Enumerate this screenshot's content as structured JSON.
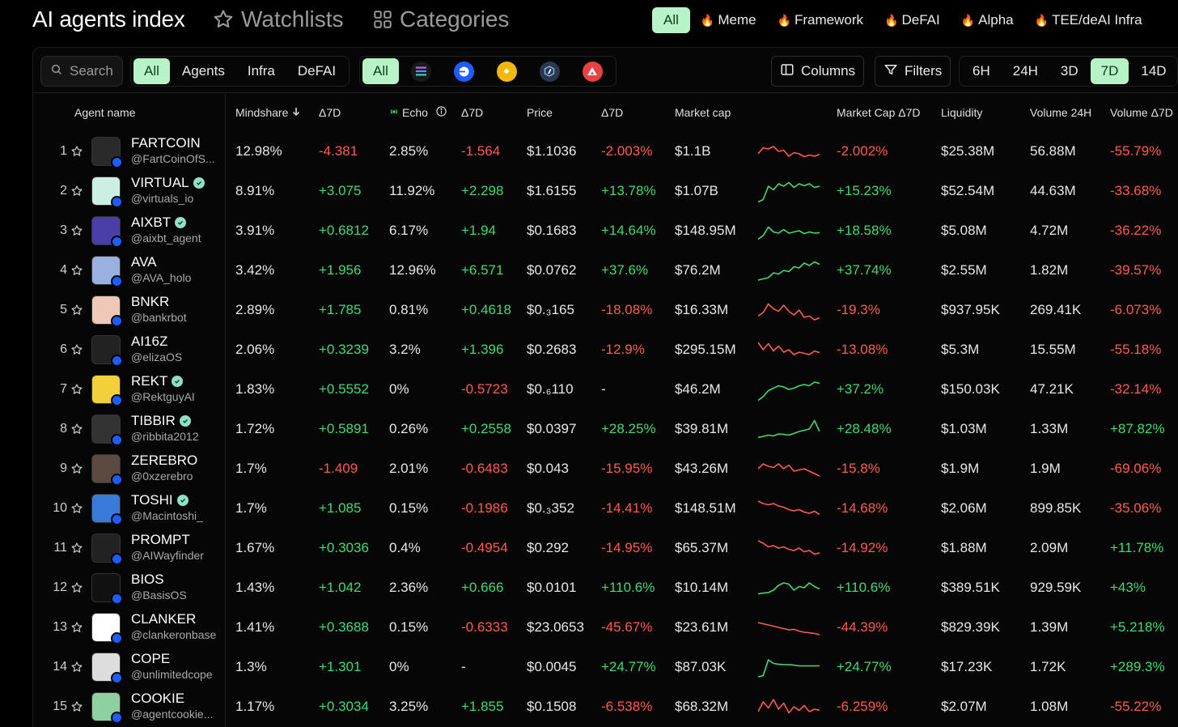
{
  "header": {
    "title": "AI agents index",
    "watchlists": "Watchlists",
    "categories": "Categories",
    "category_filters": [
      {
        "label": "All",
        "active": true,
        "hot": false
      },
      {
        "label": "Meme",
        "active": false,
        "hot": true
      },
      {
        "label": "Framework",
        "active": false,
        "hot": true
      },
      {
        "label": "DeFAI",
        "active": false,
        "hot": true
      },
      {
        "label": "Alpha",
        "active": false,
        "hot": true
      },
      {
        "label": "TEE/deAI Infra",
        "active": false,
        "hot": true
      }
    ]
  },
  "toolbar": {
    "search_placeholder": "Search",
    "type_tabs": [
      "All",
      "Agents",
      "Infra",
      "DeFAI"
    ],
    "chain_all": "All",
    "chains": [
      "solana-icon",
      "base-icon",
      "bnb-icon",
      "arbitrum-icon",
      "avalanche-icon"
    ],
    "columns_label": "Columns",
    "filters_label": "Filters",
    "timeframes": [
      "6H",
      "24H",
      "3D",
      "7D",
      "14D"
    ],
    "active_timeframe": "7D"
  },
  "table": {
    "headers": {
      "agent": "Agent name",
      "mindshare": "Mindshare",
      "mindshare_d": "Δ7D",
      "echo": "Echo",
      "echo_d": "Δ7D",
      "price": "Price",
      "price_d": "Δ7D",
      "mcap": "Market cap",
      "mcap_d": "Market Cap Δ7D",
      "liquidity": "Liquidity",
      "volume": "Volume 24H",
      "volume_d": "Volume Δ7D"
    },
    "rows": [
      {
        "rank": "1",
        "name": "FARTCOIN",
        "handle": "@FartCoinOfS...",
        "verified": false,
        "mind": "12.98%",
        "mind_d": "-4.381",
        "echo": "2.85%",
        "echo_d": "-1.564",
        "price": "$1.1036",
        "price_d": "-2.003%",
        "mcap": "$1.1B",
        "mcap_d": "-2.002%",
        "liq": "$25.38M",
        "vol": "56.88M",
        "vol_d": "-55.79%",
        "spark": [
          0.6,
          0.35,
          0.4,
          0.3,
          0.5,
          0.45,
          0.7,
          0.55,
          0.6,
          0.72,
          0.65,
          0.7,
          0.62
        ],
        "avatar": "#2a2a2a"
      },
      {
        "rank": "2",
        "name": "VIRTUAL",
        "handle": "@virtuals_io",
        "verified": true,
        "mind": "8.91%",
        "mind_d": "+3.075",
        "echo": "11.92%",
        "echo_d": "+2.298",
        "price": "$1.6155",
        "price_d": "+13.78%",
        "mcap": "$1.07B",
        "mcap_d": "+15.23%",
        "liq": "$52.54M",
        "vol": "44.63M",
        "vol_d": "-33.68%",
        "spark": [
          0.95,
          0.85,
          0.3,
          0.45,
          0.2,
          0.3,
          0.15,
          0.35,
          0.2,
          0.28,
          0.2,
          0.35,
          0.3
        ],
        "avatar": "#cdeee2"
      },
      {
        "rank": "3",
        "name": "AIXBT",
        "handle": "@aixbt_agent",
        "verified": true,
        "mind": "3.91%",
        "mind_d": "+0.6812",
        "echo": "6.17%",
        "echo_d": "+1.94",
        "price": "$0.1683",
        "price_d": "+14.64%",
        "mcap": "$148.95M",
        "mcap_d": "+18.58%",
        "liq": "$5.08M",
        "vol": "4.72M",
        "vol_d": "-36.22%",
        "spark": [
          0.85,
          0.7,
          0.35,
          0.55,
          0.6,
          0.45,
          0.6,
          0.55,
          0.5,
          0.62,
          0.55,
          0.6,
          0.58
        ],
        "avatar": "#4a3fa8"
      },
      {
        "rank": "4",
        "name": "AVA",
        "handle": "@AVA_holo",
        "verified": false,
        "mind": "3.42%",
        "mind_d": "+1.956",
        "echo": "12.96%",
        "echo_d": "+6.571",
        "price": "$0.0762",
        "price_d": "+37.6%",
        "mcap": "$76.2M",
        "mcap_d": "+37.74%",
        "liq": "$2.55M",
        "vol": "1.82M",
        "vol_d": "-39.57%",
        "spark": [
          0.9,
          0.85,
          0.8,
          0.6,
          0.65,
          0.5,
          0.55,
          0.35,
          0.4,
          0.2,
          0.3,
          0.15,
          0.25
        ],
        "avatar": "#9ab0e0"
      },
      {
        "rank": "5",
        "name": "BNKR",
        "handle": "@bankrbot",
        "verified": false,
        "mind": "2.89%",
        "mind_d": "+1.785",
        "echo": "0.81%",
        "echo_d": "+0.4618",
        "price": "$0.₃165",
        "price_d": "-18.08%",
        "mcap": "$16.33M",
        "mcap_d": "-19.3%",
        "liq": "$937.95K",
        "vol": "269.41K",
        "vol_d": "-6.073%",
        "spark": [
          0.75,
          0.6,
          0.25,
          0.45,
          0.55,
          0.3,
          0.55,
          0.7,
          0.5,
          0.8,
          0.75,
          0.9,
          0.82
        ],
        "avatar": "#f0c8b8"
      },
      {
        "rank": "6",
        "name": "AI16Z",
        "handle": "@elizaOS",
        "verified": false,
        "mind": "2.06%",
        "mind_d": "+0.3239",
        "echo": "3.2%",
        "echo_d": "+1.396",
        "price": "$0.2683",
        "price_d": "-12.9%",
        "mcap": "$295.15M",
        "mcap_d": "-13.08%",
        "liq": "$5.3M",
        "vol": "15.55M",
        "vol_d": "-55.18%",
        "spark": [
          0.2,
          0.5,
          0.25,
          0.55,
          0.35,
          0.6,
          0.5,
          0.7,
          0.6,
          0.65,
          0.7,
          0.55,
          0.62
        ],
        "avatar": "#222"
      },
      {
        "rank": "7",
        "name": "REKT",
        "handle": "@RektguyAI",
        "verified": true,
        "mind": "1.83%",
        "mind_d": "+0.5552",
        "echo": "0%",
        "echo_d": "-0.5723",
        "price": "$0.₆110",
        "price_d": "-",
        "mcap": "$46.2M",
        "mcap_d": "+37.2%",
        "liq": "$150.03K",
        "vol": "47.21K",
        "vol_d": "-32.14%",
        "spark": [
          0.95,
          0.8,
          0.55,
          0.45,
          0.35,
          0.4,
          0.5,
          0.45,
          0.35,
          0.3,
          0.35,
          0.2,
          0.25
        ],
        "avatar": "#f2d03a"
      },
      {
        "rank": "8",
        "name": "TIBBIR",
        "handle": "@ribbita2012",
        "verified": true,
        "mind": "1.72%",
        "mind_d": "+0.5891",
        "echo": "0.26%",
        "echo_d": "+0.2558",
        "price": "$0.0397",
        "price_d": "+28.25%",
        "mcap": "$39.81M",
        "mcap_d": "+28.48%",
        "liq": "$1.03M",
        "vol": "1.33M",
        "vol_d": "+87.82%",
        "spark": [
          0.85,
          0.8,
          0.75,
          0.78,
          0.7,
          0.72,
          0.75,
          0.68,
          0.6,
          0.55,
          0.5,
          0.15,
          0.6
        ],
        "avatar": "#333"
      },
      {
        "rank": "9",
        "name": "ZEREBRO",
        "handle": "@0xzerebro",
        "verified": false,
        "mind": "1.7%",
        "mind_d": "-1.409",
        "echo": "2.01%",
        "echo_d": "-0.6483",
        "price": "$0.043",
        "price_d": "-15.95%",
        "mcap": "$43.26M",
        "mcap_d": "-15.8%",
        "liq": "$1.9M",
        "vol": "1.9M",
        "vol_d": "-69.06%",
        "spark": [
          0.5,
          0.3,
          0.4,
          0.45,
          0.3,
          0.5,
          0.35,
          0.6,
          0.55,
          0.5,
          0.6,
          0.7,
          0.8
        ],
        "avatar": "#5a4a40"
      },
      {
        "rank": "10",
        "name": "TOSHI",
        "handle": "@Macintoshi_",
        "verified": true,
        "mind": "1.7%",
        "mind_d": "+1.085",
        "echo": "0.15%",
        "echo_d": "-0.1986",
        "price": "$0.₃352",
        "price_d": "-14.41%",
        "mcap": "$148.51M",
        "mcap_d": "-14.68%",
        "liq": "$2.06M",
        "vol": "899.85K",
        "vol_d": "-35.06%",
        "spark": [
          0.2,
          0.3,
          0.35,
          0.3,
          0.4,
          0.45,
          0.55,
          0.6,
          0.55,
          0.65,
          0.7,
          0.62,
          0.75
        ],
        "avatar": "#3a7ad8"
      },
      {
        "rank": "11",
        "name": "PROMPT",
        "handle": "@AIWayfinder",
        "verified": false,
        "mind": "1.67%",
        "mind_d": "+0.3036",
        "echo": "0.4%",
        "echo_d": "-0.4954",
        "price": "$0.292",
        "price_d": "-14.95%",
        "mcap": "$65.37M",
        "mcap_d": "-14.92%",
        "liq": "$1.88M",
        "vol": "2.09M",
        "vol_d": "+11.78%",
        "spark": [
          0.2,
          0.3,
          0.45,
          0.4,
          0.5,
          0.45,
          0.55,
          0.6,
          0.5,
          0.65,
          0.6,
          0.75,
          0.7
        ],
        "avatar": "#222"
      },
      {
        "rank": "12",
        "name": "BIOS",
        "handle": "@BasisOS",
        "verified": false,
        "mind": "1.43%",
        "mind_d": "+1.042",
        "echo": "2.36%",
        "echo_d": "+0.666",
        "price": "$0.0101",
        "price_d": "+110.6%",
        "mcap": "$10.14M",
        "mcap_d": "+110.6%",
        "liq": "$389.51K",
        "vol": "929.59K",
        "vol_d": "+43%",
        "spark": [
          0.75,
          0.72,
          0.7,
          0.6,
          0.4,
          0.3,
          0.35,
          0.6,
          0.45,
          0.5,
          0.3,
          0.45,
          0.55
        ],
        "avatar": "#111"
      },
      {
        "rank": "13",
        "name": "CLANKER",
        "handle": "@clankeronbase",
        "verified": false,
        "mind": "1.41%",
        "mind_d": "+0.3688",
        "echo": "0.15%",
        "echo_d": "-0.6333",
        "price": "$23.0653",
        "price_d": "-45.67%",
        "mcap": "$23.61M",
        "mcap_d": "-44.39%",
        "liq": "$829.39K",
        "vol": "1.39M",
        "vol_d": "+5.218%",
        "spark": [
          0.3,
          0.35,
          0.4,
          0.45,
          0.5,
          0.55,
          0.6,
          0.58,
          0.65,
          0.7,
          0.72,
          0.75,
          0.8
        ],
        "avatar": "#fff"
      },
      {
        "rank": "14",
        "name": "COPE",
        "handle": "@unlimitedcope",
        "verified": false,
        "mind": "1.3%",
        "mind_d": "+1.301",
        "echo": "0%",
        "echo_d": "-",
        "price": "$0.0045",
        "price_d": "+24.77%",
        "mcap": "$87.03K",
        "mcap_d": "+24.77%",
        "liq": "$17.23K",
        "vol": "1.72K",
        "vol_d": "+289.3%",
        "spark": [
          0.9,
          0.85,
          0.2,
          0.35,
          0.38,
          0.4,
          0.4,
          0.42,
          0.45,
          0.45,
          0.45,
          0.45,
          0.45
        ],
        "avatar": "#ddd"
      },
      {
        "rank": "15",
        "name": "COOKIE",
        "handle": "@agentcookie...",
        "verified": false,
        "mind": "1.17%",
        "mind_d": "+0.3034",
        "echo": "3.25%",
        "echo_d": "+1.855",
        "price": "$0.1508",
        "price_d": "-6.538%",
        "mcap": "$68.32M",
        "mcap_d": "-6.259%",
        "liq": "$2.07M",
        "vol": "1.08M",
        "vol_d": "-55.22%",
        "spark": [
          0.7,
          0.3,
          0.55,
          0.2,
          0.6,
          0.35,
          0.75,
          0.5,
          0.65,
          0.45,
          0.7,
          0.6,
          0.65
        ],
        "avatar": "#8fd0a0"
      }
    ]
  },
  "colors": {
    "positive": "#3ddc74",
    "negative": "#ff5b50",
    "accent": "#b8f3c8",
    "accent_text": "#0b3d1c"
  }
}
